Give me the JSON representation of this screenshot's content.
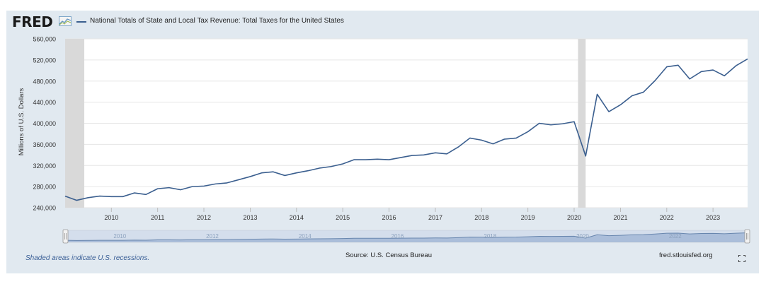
{
  "header": {
    "logo": "FRED",
    "legend_label": "National Totals of State and Local Tax Revenue: Total Taxes for the United States"
  },
  "footer": {
    "recession_note": "Shaded areas indicate U.S. recessions.",
    "source": "Source: U.S. Census Bureau",
    "site": "fred.stlouisfed.org"
  },
  "colors": {
    "series": "#3b5f8f",
    "recession": "#d9d9d9",
    "background": "#e1e9f0"
  },
  "icons": [
    "fred-logo-icon",
    "fullscreen-icon"
  ],
  "chart_data": {
    "type": "line",
    "ylabel": "Millions of U.S. Dollars",
    "ylim": [
      240000,
      560000
    ],
    "yticks": [
      240000,
      280000,
      320000,
      360000,
      400000,
      440000,
      480000,
      520000,
      560000
    ],
    "ytick_labels": [
      "240,000",
      "280,000",
      "320,000",
      "360,000",
      "400,000",
      "440,000",
      "480,000",
      "520,000",
      "560,000"
    ],
    "xlim": [
      "2009-01-01",
      "2023-10-01"
    ],
    "xticks": [
      "2010",
      "2011",
      "2012",
      "2013",
      "2014",
      "2015",
      "2016",
      "2017",
      "2018",
      "2019",
      "2020",
      "2021",
      "2022",
      "2023"
    ],
    "grid": true,
    "recessions": [
      {
        "start": "2009-01-01",
        "end": "2009-06-01"
      },
      {
        "start": "2020-02-01",
        "end": "2020-04-01"
      }
    ],
    "navigator_ticks": [
      "2010",
      "2012",
      "2014",
      "2016",
      "2018",
      "2020",
      "2022"
    ],
    "series": [
      {
        "x": [
          "2009-01",
          "2009-04",
          "2009-07",
          "2009-10",
          "2010-01",
          "2010-04",
          "2010-07",
          "2010-10",
          "2011-01",
          "2011-04",
          "2011-07",
          "2011-10",
          "2012-01",
          "2012-04",
          "2012-07",
          "2012-10",
          "2013-01",
          "2013-04",
          "2013-07",
          "2013-10",
          "2014-01",
          "2014-04",
          "2014-07",
          "2014-10",
          "2015-01",
          "2015-04",
          "2015-07",
          "2015-10",
          "2016-01",
          "2016-04",
          "2016-07",
          "2016-10",
          "2017-01",
          "2017-04",
          "2017-07",
          "2017-10",
          "2018-01",
          "2018-04",
          "2018-07",
          "2018-10",
          "2019-01",
          "2019-04",
          "2019-07",
          "2019-10",
          "2020-01",
          "2020-04",
          "2020-07",
          "2020-10",
          "2021-01",
          "2021-04",
          "2021-07",
          "2021-10",
          "2022-01",
          "2022-04",
          "2022-07",
          "2022-10",
          "2023-01",
          "2023-04",
          "2023-07",
          "2023-10"
        ],
        "values": [
          262000,
          254000,
          259000,
          262000,
          261000,
          261000,
          268000,
          265000,
          276000,
          278000,
          274000,
          280000,
          281000,
          285000,
          287000,
          293000,
          299000,
          306000,
          308000,
          301000,
          306000,
          310000,
          315000,
          318000,
          323000,
          331000,
          331000,
          332000,
          331000,
          335000,
          339000,
          340000,
          344000,
          342000,
          355000,
          372000,
          368000,
          361000,
          370000,
          372000,
          384000,
          400000,
          397000,
          399000,
          403000,
          338000,
          455000,
          422000,
          435000,
          452000,
          459000,
          481000,
          507000,
          510000,
          484000,
          498000,
          501000,
          490000,
          509000,
          522000
        ]
      }
    ]
  }
}
